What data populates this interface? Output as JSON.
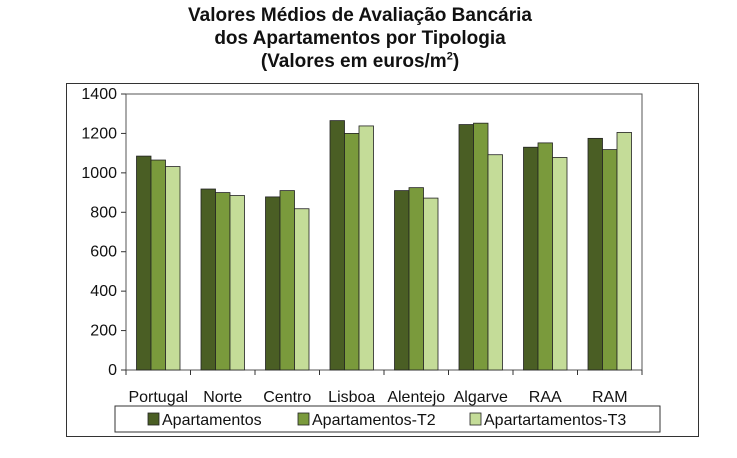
{
  "chart_data": {
    "type": "bar",
    "title_lines": [
      "Valores Médios de Avaliação Bancária",
      "dos Apartamentos por Tipologia"
    ],
    "title_unit_prefix": "(Valores em euros/m",
    "title_unit_sup": "2",
    "title_unit_suffix": ")",
    "categories": [
      "Portugal",
      "Norte",
      "Centro",
      "Lisboa",
      "Alentejo",
      "Algarve",
      "RAA",
      "RAM"
    ],
    "series": [
      {
        "name": "Apartamentos",
        "values": [
          1085,
          918,
          878,
          1265,
          910,
          1245,
          1130,
          1175
        ]
      },
      {
        "name": "Apartamentos-T2",
        "values": [
          1065,
          900,
          910,
          1200,
          925,
          1252,
          1152,
          1118
        ]
      },
      {
        "name": "Apartartamentos-T3",
        "values": [
          1032,
          885,
          818,
          1238,
          872,
          1092,
          1078,
          1205
        ]
      }
    ],
    "colors": [
      "#4a5e24",
      "#7a9a3c",
      "#c4dc98"
    ],
    "ylim": [
      0,
      1400
    ],
    "yticks": [
      0,
      200,
      400,
      600,
      800,
      1000,
      1200,
      1400
    ],
    "legend_position": "bottom",
    "grid": false
  }
}
